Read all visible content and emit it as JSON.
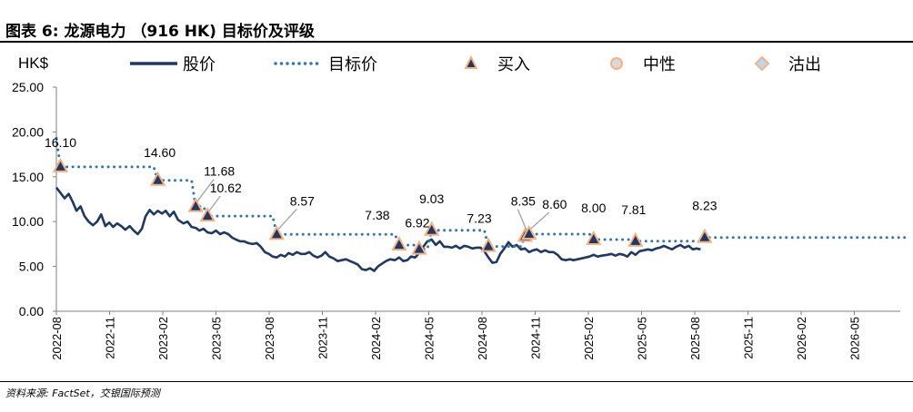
{
  "figure": {
    "title": "图表 6: 龙源电力 （916 HK) 目标价及评级",
    "source": "资料来源: FactSet，交银国际预测"
  },
  "chart_data": {
    "type": "line",
    "unit_label": "HK$",
    "ylim": [
      0,
      25
    ],
    "yticks": [
      "0.00",
      "5.00",
      "10.00",
      "15.00",
      "20.00",
      "25.00"
    ],
    "xticks": [
      "2022-08",
      "2022-11",
      "2023-02",
      "2023-05",
      "2023-08",
      "2023-11",
      "2024-02",
      "2024-05",
      "2024-08",
      "2024-11",
      "2025-02",
      "2025-05",
      "2025-08",
      "2025-11",
      "2026-02",
      "2026-05"
    ],
    "legend": {
      "placement": "top",
      "items": [
        {
          "label": "股价",
          "style": "solid-line",
          "color": "#1f3864"
        },
        {
          "label": "目标价",
          "style": "dotted-line",
          "color": "#2e75b6"
        },
        {
          "label": "买入",
          "style": "triangle",
          "color": "#1f3864",
          "edge": "#f4b183"
        },
        {
          "label": "中性",
          "style": "circle",
          "color": "#d9d9d9",
          "edge": "#f4b183"
        },
        {
          "label": "沽出",
          "style": "diamond",
          "color": "#bdd7ee",
          "edge": "#f4b183"
        }
      ]
    },
    "series": [
      {
        "name": "股价",
        "color": "#1f3864",
        "points": [
          [
            "2022-08-01",
            13.8
          ],
          [
            "2022-08-08",
            13.2
          ],
          [
            "2022-08-15",
            12.6
          ],
          [
            "2022-08-22",
            13.1
          ],
          [
            "2022-08-29",
            12.2
          ],
          [
            "2022-09-05",
            11.2
          ],
          [
            "2022-09-12",
            11.7
          ],
          [
            "2022-09-19",
            10.6
          ],
          [
            "2022-09-26",
            10.0
          ],
          [
            "2022-10-03",
            9.6
          ],
          [
            "2022-10-10",
            10.0
          ],
          [
            "2022-10-17",
            10.8
          ],
          [
            "2022-10-24",
            9.5
          ],
          [
            "2022-10-31",
            9.9
          ],
          [
            "2022-11-07",
            9.4
          ],
          [
            "2022-11-14",
            9.8
          ],
          [
            "2022-11-21",
            9.5
          ],
          [
            "2022-11-28",
            9.1
          ],
          [
            "2022-12-05",
            9.5
          ],
          [
            "2022-12-12",
            9.0
          ],
          [
            "2022-12-19",
            8.6
          ],
          [
            "2022-12-26",
            9.2
          ],
          [
            "2023-01-02",
            10.6
          ],
          [
            "2023-01-09",
            11.3
          ],
          [
            "2023-01-16",
            10.8
          ],
          [
            "2023-01-23",
            11.2
          ],
          [
            "2023-01-30",
            10.9
          ],
          [
            "2023-02-06",
            11.2
          ],
          [
            "2023-02-13",
            10.6
          ],
          [
            "2023-02-20",
            11.1
          ],
          [
            "2023-02-27",
            10.2
          ],
          [
            "2023-03-06",
            9.8
          ],
          [
            "2023-03-13",
            10.0
          ],
          [
            "2023-03-20",
            9.4
          ],
          [
            "2023-03-27",
            9.3
          ],
          [
            "2023-04-03",
            9.0
          ],
          [
            "2023-04-10",
            9.2
          ],
          [
            "2023-04-17",
            8.8
          ],
          [
            "2023-04-24",
            8.7
          ],
          [
            "2023-05-01",
            9.0
          ],
          [
            "2023-05-08",
            8.6
          ],
          [
            "2023-05-15",
            8.8
          ],
          [
            "2023-05-22",
            8.6
          ],
          [
            "2023-05-29",
            8.2
          ],
          [
            "2023-06-05",
            8.0
          ],
          [
            "2023-06-12",
            7.8
          ],
          [
            "2023-06-19",
            7.8
          ],
          [
            "2023-06-26",
            7.6
          ],
          [
            "2023-07-03",
            7.5
          ],
          [
            "2023-07-10",
            7.6
          ],
          [
            "2023-07-17",
            7.2
          ],
          [
            "2023-07-24",
            6.6
          ],
          [
            "2023-07-31",
            6.4
          ],
          [
            "2023-08-07",
            6.1
          ],
          [
            "2023-08-14",
            6.0
          ],
          [
            "2023-08-21",
            6.3
          ],
          [
            "2023-08-28",
            6.1
          ],
          [
            "2023-09-04",
            6.5
          ],
          [
            "2023-09-11",
            6.3
          ],
          [
            "2023-09-18",
            6.6
          ],
          [
            "2023-09-25",
            6.4
          ],
          [
            "2023-10-02",
            6.4
          ],
          [
            "2023-10-09",
            6.6
          ],
          [
            "2023-10-16",
            6.2
          ],
          [
            "2023-10-23",
            6.0
          ],
          [
            "2023-10-30",
            6.2
          ],
          [
            "2023-11-06",
            6.6
          ],
          [
            "2023-11-13",
            6.1
          ],
          [
            "2023-11-20",
            5.9
          ],
          [
            "2023-11-27",
            5.6
          ],
          [
            "2023-12-04",
            5.7
          ],
          [
            "2023-12-11",
            5.8
          ],
          [
            "2023-12-18",
            5.6
          ],
          [
            "2023-12-25",
            5.4
          ],
          [
            "2024-01-01",
            5.2
          ],
          [
            "2024-01-08",
            4.7
          ],
          [
            "2024-01-15",
            4.6
          ],
          [
            "2024-01-22",
            4.8
          ],
          [
            "2024-01-29",
            4.5
          ],
          [
            "2024-02-05",
            5.0
          ],
          [
            "2024-02-12",
            5.3
          ],
          [
            "2024-02-19",
            5.6
          ],
          [
            "2024-02-26",
            5.8
          ],
          [
            "2024-03-04",
            5.7
          ],
          [
            "2024-03-11",
            6.0
          ],
          [
            "2024-03-18",
            5.6
          ],
          [
            "2024-03-25",
            5.7
          ],
          [
            "2024-04-01",
            6.1
          ],
          [
            "2024-04-08",
            6.0
          ],
          [
            "2024-04-15",
            6.5
          ],
          [
            "2024-04-22",
            7.2
          ],
          [
            "2024-04-29",
            7.8
          ],
          [
            "2024-05-06",
            8.0
          ],
          [
            "2024-05-13",
            7.4
          ],
          [
            "2024-05-20",
            7.8
          ],
          [
            "2024-05-27",
            7.2
          ],
          [
            "2024-06-03",
            7.2
          ],
          [
            "2024-06-10",
            7.1
          ],
          [
            "2024-06-17",
            7.3
          ],
          [
            "2024-06-24",
            7.0
          ],
          [
            "2024-07-01",
            7.3
          ],
          [
            "2024-07-08",
            7.2
          ],
          [
            "2024-07-15",
            7.0
          ],
          [
            "2024-07-22",
            7.1
          ],
          [
            "2024-07-29",
            7.1
          ],
          [
            "2024-08-05",
            6.7
          ],
          [
            "2024-08-12",
            6.0
          ],
          [
            "2024-08-19",
            5.4
          ],
          [
            "2024-08-26",
            5.5
          ],
          [
            "2024-09-02",
            6.4
          ],
          [
            "2024-09-09",
            7.0
          ],
          [
            "2024-09-16",
            7.7
          ],
          [
            "2024-09-23",
            7.2
          ],
          [
            "2024-09-30",
            7.4
          ],
          [
            "2024-10-07",
            6.9
          ],
          [
            "2024-10-14",
            7.0
          ],
          [
            "2024-10-21",
            6.6
          ],
          [
            "2024-10-28",
            6.8
          ],
          [
            "2024-11-04",
            6.9
          ],
          [
            "2024-11-11",
            6.6
          ],
          [
            "2024-11-18",
            6.8
          ],
          [
            "2024-11-25",
            6.6
          ],
          [
            "2024-12-02",
            6.6
          ],
          [
            "2024-12-09",
            6.3
          ],
          [
            "2024-12-16",
            5.8
          ],
          [
            "2024-12-23",
            5.7
          ],
          [
            "2024-12-30",
            5.8
          ],
          [
            "2025-01-06",
            5.7
          ],
          [
            "2025-01-13",
            5.8
          ],
          [
            "2025-01-20",
            5.9
          ],
          [
            "2025-01-27",
            6.0
          ],
          [
            "2025-02-03",
            6.1
          ],
          [
            "2025-02-10",
            6.3
          ],
          [
            "2025-02-17",
            6.1
          ],
          [
            "2025-02-24",
            6.2
          ],
          [
            "2025-03-03",
            6.3
          ],
          [
            "2025-03-10",
            6.4
          ],
          [
            "2025-03-17",
            6.2
          ],
          [
            "2025-03-24",
            6.4
          ],
          [
            "2025-03-31",
            6.3
          ],
          [
            "2025-04-07",
            6.1
          ],
          [
            "2025-04-14",
            6.6
          ],
          [
            "2025-04-21",
            6.3
          ],
          [
            "2025-04-28",
            6.7
          ],
          [
            "2025-05-05",
            6.8
          ],
          [
            "2025-05-12",
            6.9
          ],
          [
            "2025-05-19",
            6.8
          ],
          [
            "2025-05-26",
            7.0
          ],
          [
            "2025-06-02",
            7.1
          ],
          [
            "2025-06-09",
            7.3
          ],
          [
            "2025-06-16",
            7.1
          ],
          [
            "2025-06-23",
            6.9
          ],
          [
            "2025-06-30",
            7.2
          ],
          [
            "2025-07-07",
            7.4
          ],
          [
            "2025-07-14",
            7.1
          ],
          [
            "2025-07-21",
            7.3
          ],
          [
            "2025-07-28",
            6.9
          ],
          [
            "2025-08-04",
            7.0
          ],
          [
            "2025-08-11",
            6.9
          ]
        ]
      },
      {
        "name": "目标价",
        "color": "#2e75b6",
        "points": [
          [
            "2022-08-01",
            19.3
          ],
          [
            "2022-08-08",
            16.1
          ],
          [
            "2023-01-16",
            16.1
          ],
          [
            "2023-01-23",
            14.6
          ],
          [
            "2023-03-20",
            14.6
          ],
          [
            "2023-03-27",
            11.68
          ],
          [
            "2023-04-10",
            11.68
          ],
          [
            "2023-04-17",
            10.62
          ],
          [
            "2023-08-07",
            10.62
          ],
          [
            "2023-08-14",
            8.57
          ],
          [
            "2024-03-04",
            8.57
          ],
          [
            "2024-03-11",
            7.38
          ],
          [
            "2024-04-08",
            7.38
          ],
          [
            "2024-04-15",
            6.92
          ],
          [
            "2024-04-29",
            6.92
          ],
          [
            "2024-05-06",
            9.03
          ],
          [
            "2024-08-05",
            9.03
          ],
          [
            "2024-08-12",
            7.23
          ],
          [
            "2024-10-07",
            7.23
          ],
          [
            "2024-10-14",
            8.35
          ],
          [
            "2024-10-21",
            8.6
          ],
          [
            "2025-02-03",
            8.6
          ],
          [
            "2025-02-10",
            8.0
          ],
          [
            "2025-04-14",
            8.0
          ],
          [
            "2025-04-21",
            7.81
          ],
          [
            "2025-08-11",
            7.81
          ],
          [
            "2025-08-18",
            8.23
          ],
          [
            "2026-07-31",
            8.23
          ]
        ]
      }
    ],
    "ratings": [
      {
        "date": "2022-08-08",
        "rating": "买入",
        "target": 16.1,
        "label": "16.10"
      },
      {
        "date": "2023-01-23",
        "rating": "买入",
        "target": 14.6,
        "label": "14.60"
      },
      {
        "date": "2023-03-27",
        "rating": "买入",
        "target": 11.68,
        "label": "11.68"
      },
      {
        "date": "2023-04-17",
        "rating": "买入",
        "target": 10.62,
        "label": "10.62"
      },
      {
        "date": "2023-08-14",
        "rating": "买入",
        "target": 8.57,
        "label": "8.57"
      },
      {
        "date": "2024-03-11",
        "rating": "买入",
        "target": 7.38,
        "label": "7.38"
      },
      {
        "date": "2024-04-15",
        "rating": "买入",
        "target": 6.92,
        "label": "6.92"
      },
      {
        "date": "2024-05-06",
        "rating": "买入",
        "target": 9.03,
        "label": "9.03"
      },
      {
        "date": "2024-08-12",
        "rating": "买入",
        "target": 7.23,
        "label": "7.23"
      },
      {
        "date": "2024-10-14",
        "rating": "买入",
        "target": 8.35,
        "label": "8.35"
      },
      {
        "date": "2024-10-21",
        "rating": "买入",
        "target": 8.6,
        "label": "8.60"
      },
      {
        "date": "2025-02-10",
        "rating": "买入",
        "target": 8.0,
        "label": "8.00"
      },
      {
        "date": "2025-04-21",
        "rating": "买入",
        "target": 7.81,
        "label": "7.81"
      },
      {
        "date": "2025-08-18",
        "rating": "买入",
        "target": 8.23,
        "label": "8.23"
      }
    ]
  }
}
